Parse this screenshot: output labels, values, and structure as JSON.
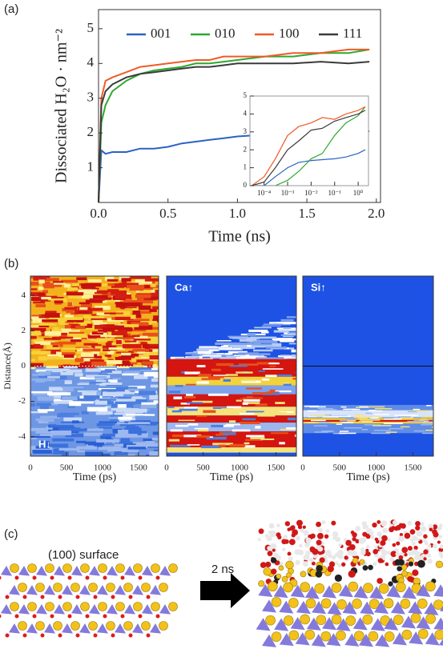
{
  "panel_labels": [
    "(a)",
    "(b)",
    "(c)"
  ],
  "chart_data": [
    {
      "type": "line",
      "x_label": "Time (ns)",
      "y_label": "Dissociated H₂O · nm⁻²",
      "x": [
        0,
        0.02,
        0.05,
        0.1,
        0.2,
        0.3,
        0.4,
        0.5,
        0.6,
        0.7,
        0.8,
        0.9,
        1.0,
        1.2,
        1.4,
        1.6,
        1.8,
        1.95
      ],
      "series": [
        {
          "name": "001",
          "color": "#2a62c4",
          "values": [
            0,
            1.5,
            1.4,
            1.45,
            1.45,
            1.55,
            1.55,
            1.6,
            1.7,
            1.75,
            1.8,
            1.85,
            1.9,
            1.95,
            2.0,
            2.0,
            2.05,
            2.05
          ]
        },
        {
          "name": "010",
          "color": "#2ea82e",
          "values": [
            0,
            2.3,
            2.8,
            3.2,
            3.5,
            3.7,
            3.8,
            3.85,
            3.9,
            4.0,
            4.0,
            4.05,
            4.1,
            4.2,
            4.2,
            4.3,
            4.3,
            4.4
          ]
        },
        {
          "name": "100",
          "color": "#f05a28",
          "values": [
            0,
            3.0,
            3.5,
            3.6,
            3.75,
            3.9,
            3.95,
            4.0,
            4.05,
            4.1,
            4.1,
            4.2,
            4.2,
            4.2,
            4.3,
            4.3,
            4.4,
            4.4
          ]
        },
        {
          "name": "111",
          "color": "#3a3a3a",
          "values": [
            0,
            2.8,
            3.2,
            3.4,
            3.6,
            3.7,
            3.75,
            3.8,
            3.85,
            3.9,
            3.9,
            3.95,
            4.0,
            4.0,
            4.0,
            4.05,
            4.0,
            4.05
          ]
        }
      ],
      "xlim": [
        0,
        2.03
      ],
      "xticks": [
        {
          "value": 0,
          "label": "0.0"
        },
        {
          "value": 0.5,
          "label": "0.5"
        },
        {
          "value": 1,
          "label": "1.0"
        },
        {
          "value": 1.5,
          "label": "1.5"
        },
        {
          "value": 2,
          "label": "2.0"
        }
      ],
      "ylim": [
        0,
        5.55
      ],
      "yticks": [
        1,
        2,
        3,
        4,
        5
      ],
      "legend": "top"
    },
    {
      "type": "line",
      "log_x": true,
      "x": [
        3e-05,
        0.0001,
        0.0003,
        0.001,
        0.003,
        0.01,
        0.03,
        0.1,
        0.3,
        1,
        2
      ],
      "series": [
        {
          "color": "#2a62c4",
          "values": [
            0,
            0,
            0.5,
            1.0,
            1.3,
            1.4,
            1.45,
            1.5,
            1.6,
            1.8,
            2.0
          ]
        },
        {
          "color": "#2ea82e",
          "values": [
            0,
            0,
            0,
            0.3,
            0.8,
            1.5,
            1.8,
            2.8,
            3.5,
            3.9,
            4.4
          ]
        },
        {
          "color": "#f05a28",
          "values": [
            0,
            0.5,
            1.5,
            2.8,
            3.3,
            3.5,
            3.8,
            3.7,
            4.0,
            4.2,
            4.4
          ]
        },
        {
          "color": "#3a3a3a",
          "values": [
            0,
            0.2,
            1.0,
            2.0,
            2.5,
            3.1,
            3.2,
            3.6,
            3.8,
            4.0,
            4.2
          ]
        }
      ],
      "xlim": [
        2.5e-05,
        2.75
      ],
      "xticks": [
        {
          "value": 0.0001,
          "label": "10⁻⁴"
        },
        {
          "value": 0.001,
          "label": "10⁻³"
        },
        {
          "value": 0.01,
          "label": "10⁻²"
        },
        {
          "value": 0.1,
          "label": "10⁻¹"
        },
        {
          "value": 1,
          "label": "10⁰"
        }
      ],
      "ylim": [
        0,
        5
      ],
      "yticks": [
        0,
        1,
        2,
        3,
        4,
        5
      ]
    },
    {
      "type": "heatmap",
      "x_label": "Time (ps)",
      "y_label": "Distance(Å)",
      "annotation": "H↓",
      "xlim": [
        0,
        1780
      ],
      "xticks": [
        0,
        500,
        1000,
        1500
      ],
      "ylim": [
        -5.1,
        5.1
      ],
      "yticks": [
        -4,
        -2,
        0,
        2,
        4
      ]
    },
    {
      "type": "heatmap",
      "x_label": "Time (ps)",
      "annotation": "Ca↑",
      "xlim": [
        0,
        1780
      ],
      "xticks": [
        0,
        500,
        1000,
        1500
      ],
      "ylim": [
        -5.1,
        5.1
      ]
    },
    {
      "type": "heatmap",
      "x_label": "Time (ps)",
      "annotation": "Si↑",
      "xlim": [
        0,
        1780
      ],
      "xticks": [
        0,
        500,
        1000,
        1500
      ],
      "ylim": [
        -5.1,
        5.1
      ]
    }
  ],
  "figure_c": {
    "surface_label": "(100) surface",
    "arrow_label": "2 ns"
  }
}
